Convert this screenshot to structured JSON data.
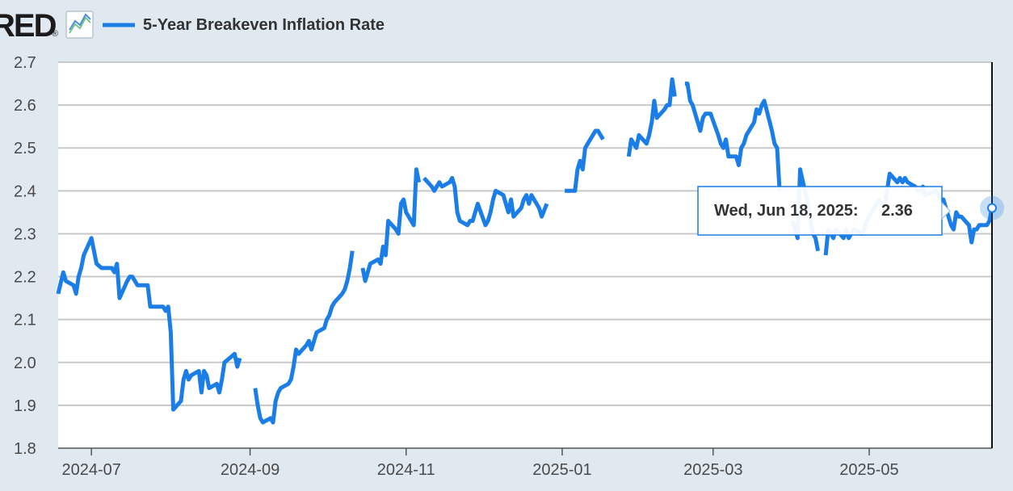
{
  "header": {
    "logo_text": "RED",
    "logo_mark": "®",
    "chart_icon": "line-chart-icon"
  },
  "tooltip": {
    "date": "Wed, Jun 18, 2025:",
    "value": "2.36"
  },
  "colors": {
    "series": "#1a7ee6",
    "background": "#e1e9f0",
    "plot_bg": "#ffffff",
    "grid": "#c8c8c8",
    "tooltip_border": "#1a7ee6"
  },
  "chart_data": {
    "type": "line",
    "title": "",
    "xlabel": "",
    "ylabel": "",
    "ylim": [
      1.8,
      2.7
    ],
    "yticks": [
      "1.8",
      "1.9",
      "2.0",
      "2.1",
      "2.2",
      "2.3",
      "2.4",
      "2.5",
      "2.6",
      "2.7"
    ],
    "xticks": [
      {
        "label": "2024-07",
        "date": "2024-07-01"
      },
      {
        "label": "2024-09",
        "date": "2024-09-01"
      },
      {
        "label": "2024-11",
        "date": "2024-11-01"
      },
      {
        "label": "2025-01",
        "date": "2025-01-01"
      },
      {
        "label": "2025-03",
        "date": "2025-03-01"
      },
      {
        "label": "2025-05",
        "date": "2025-05-01"
      }
    ],
    "xrange": [
      "2024-06-18",
      "2025-06-18"
    ],
    "grid": true,
    "legend_position": "top-left",
    "series": [
      {
        "name": "5-Year Breakeven Inflation Rate",
        "segments": [
          [
            [
              "2024-06-18",
              2.16
            ],
            [
              "2024-06-20",
              2.21
            ],
            [
              "2024-06-21",
              2.19
            ],
            [
              "2024-06-24",
              2.18
            ],
            [
              "2024-06-25",
              2.16
            ],
            [
              "2024-06-26",
              2.2
            ],
            [
              "2024-06-27",
              2.22
            ],
            [
              "2024-06-28",
              2.25
            ],
            [
              "2024-07-01",
              2.29
            ],
            [
              "2024-07-03",
              2.23
            ],
            [
              "2024-07-05",
              2.22
            ],
            [
              "2024-07-08",
              2.22
            ],
            [
              "2024-07-09",
              2.22
            ],
            [
              "2024-07-10",
              2.21
            ],
            [
              "2024-07-11",
              2.23
            ],
            [
              "2024-07-12",
              2.15
            ],
            [
              "2024-07-15",
              2.19
            ],
            [
              "2024-07-16",
              2.2
            ],
            [
              "2024-07-17",
              2.2
            ],
            [
              "2024-07-18",
              2.19
            ],
            [
              "2024-07-19",
              2.18
            ],
            [
              "2024-07-22",
              2.18
            ],
            [
              "2024-07-23",
              2.18
            ],
            [
              "2024-07-24",
              2.13
            ],
            [
              "2024-07-25",
              2.13
            ],
            [
              "2024-07-26",
              2.13
            ],
            [
              "2024-07-29",
              2.13
            ],
            [
              "2024-07-30",
              2.12
            ],
            [
              "2024-07-31",
              2.13
            ],
            [
              "2024-08-01",
              2.07
            ],
            [
              "2024-08-02",
              1.89
            ],
            [
              "2024-08-05",
              1.91
            ],
            [
              "2024-08-06",
              1.96
            ],
            [
              "2024-08-07",
              1.98
            ],
            [
              "2024-08-08",
              1.96
            ],
            [
              "2024-08-09",
              1.97
            ],
            [
              "2024-08-12",
              1.98
            ],
            [
              "2024-08-13",
              1.93
            ],
            [
              "2024-08-14",
              1.98
            ],
            [
              "2024-08-15",
              1.97
            ],
            [
              "2024-08-16",
              1.94
            ],
            [
              "2024-08-19",
              1.95
            ],
            [
              "2024-08-20",
              1.93
            ],
            [
              "2024-08-21",
              1.96
            ],
            [
              "2024-08-22",
              2.0
            ],
            [
              "2024-08-26",
              2.02
            ],
            [
              "2024-08-27",
              1.99
            ],
            [
              "2024-08-28",
              2.01
            ]
          ],
          [
            [
              "2024-09-03",
              1.94
            ],
            [
              "2024-09-04",
              1.9
            ],
            [
              "2024-09-05",
              1.87
            ],
            [
              "2024-09-06",
              1.86
            ],
            [
              "2024-09-09",
              1.87
            ],
            [
              "2024-09-10",
              1.86
            ],
            [
              "2024-09-11",
              1.91
            ],
            [
              "2024-09-12",
              1.93
            ],
            [
              "2024-09-13",
              1.94
            ],
            [
              "2024-09-16",
              1.95
            ],
            [
              "2024-09-17",
              1.96
            ],
            [
              "2024-09-18",
              1.99
            ],
            [
              "2024-09-19",
              2.03
            ],
            [
              "2024-09-20",
              2.02
            ],
            [
              "2024-09-23",
              2.04
            ],
            [
              "2024-09-24",
              2.05
            ],
            [
              "2024-09-25",
              2.03
            ],
            [
              "2024-09-26",
              2.05
            ],
            [
              "2024-09-27",
              2.07
            ],
            [
              "2024-09-30",
              2.08
            ],
            [
              "2024-10-01",
              2.1
            ],
            [
              "2024-10-02",
              2.11
            ],
            [
              "2024-10-03",
              2.13
            ],
            [
              "2024-10-04",
              2.14
            ],
            [
              "2024-10-07",
              2.16
            ],
            [
              "2024-10-08",
              2.17
            ],
            [
              "2024-10-09",
              2.19
            ],
            [
              "2024-10-10",
              2.22
            ],
            [
              "2024-10-11",
              2.26
            ]
          ],
          [
            [
              "2024-10-15",
              2.22
            ],
            [
              "2024-10-16",
              2.19
            ],
            [
              "2024-10-17",
              2.21
            ],
            [
              "2024-10-18",
              2.23
            ],
            [
              "2024-10-21",
              2.24
            ],
            [
              "2024-10-22",
              2.23
            ],
            [
              "2024-10-23",
              2.27
            ],
            [
              "2024-10-24",
              2.25
            ],
            [
              "2024-10-25",
              2.33
            ],
            [
              "2024-10-28",
              2.31
            ],
            [
              "2024-10-29",
              2.3
            ],
            [
              "2024-10-30",
              2.37
            ],
            [
              "2024-10-31",
              2.38
            ],
            [
              "2024-11-01",
              2.35
            ],
            [
              "2024-11-04",
              2.32
            ],
            [
              "2024-11-05",
              2.45
            ],
            [
              "2024-11-06",
              2.42
            ]
          ],
          [
            [
              "2024-11-08",
              2.43
            ],
            [
              "2024-11-11",
              2.41
            ],
            [
              "2024-11-12",
              2.4
            ],
            [
              "2024-11-13",
              2.41
            ],
            [
              "2024-11-14",
              2.42
            ],
            [
              "2024-11-15",
              2.41
            ],
            [
              "2024-11-18",
              2.42
            ],
            [
              "2024-11-19",
              2.43
            ],
            [
              "2024-11-20",
              2.41
            ],
            [
              "2024-11-21",
              2.35
            ],
            [
              "2024-11-22",
              2.33
            ],
            [
              "2024-11-25",
              2.32
            ],
            [
              "2024-11-26",
              2.33
            ],
            [
              "2024-11-27",
              2.33
            ],
            [
              "2024-11-29",
              2.37
            ],
            [
              "2024-12-02",
              2.32
            ],
            [
              "2024-12-03",
              2.33
            ],
            [
              "2024-12-04",
              2.35
            ],
            [
              "2024-12-05",
              2.38
            ],
            [
              "2024-12-06",
              2.4
            ],
            [
              "2024-12-09",
              2.39
            ],
            [
              "2024-12-10",
              2.37
            ],
            [
              "2024-12-11",
              2.35
            ],
            [
              "2024-12-12",
              2.38
            ],
            [
              "2024-12-13",
              2.34
            ],
            [
              "2024-12-16",
              2.36
            ],
            [
              "2024-12-17",
              2.38
            ],
            [
              "2024-12-18",
              2.39
            ],
            [
              "2024-12-19",
              2.37
            ],
            [
              "2024-12-20",
              2.39
            ],
            [
              "2024-12-23",
              2.36
            ],
            [
              "2024-12-24",
              2.34
            ],
            [
              "2024-12-26",
              2.37
            ]
          ],
          [
            [
              "2025-01-02",
              2.4
            ],
            [
              "2025-01-03",
              2.4
            ],
            [
              "2025-01-06",
              2.4
            ],
            [
              "2025-01-07",
              2.45
            ],
            [
              "2025-01-08",
              2.47
            ],
            [
              "2025-01-09",
              2.45
            ],
            [
              "2025-01-10",
              2.5
            ],
            [
              "2025-01-13",
              2.53
            ],
            [
              "2025-01-14",
              2.54
            ],
            [
              "2025-01-15",
              2.54
            ],
            [
              "2025-01-16",
              2.53
            ],
            [
              "2025-01-17",
              2.52
            ]
          ],
          [
            [
              "2025-01-27",
              2.48
            ],
            [
              "2025-01-28",
              2.52
            ],
            [
              "2025-01-29",
              2.51
            ],
            [
              "2025-01-30",
              2.5
            ],
            [
              "2025-01-31",
              2.53
            ],
            [
              "2025-02-03",
              2.51
            ],
            [
              "2025-02-04",
              2.53
            ],
            [
              "2025-02-05",
              2.56
            ],
            [
              "2025-02-06",
              2.61
            ],
            [
              "2025-02-07",
              2.57
            ],
            [
              "2025-02-10",
              2.59
            ],
            [
              "2025-02-11",
              2.6
            ],
            [
              "2025-02-12",
              2.6
            ],
            [
              "2025-02-13",
              2.66
            ],
            [
              "2025-02-14",
              2.62
            ]
          ],
          [
            [
              "2025-02-18",
              2.65
            ],
            [
              "2025-02-19",
              2.65
            ],
            [
              "2025-02-20",
              2.61
            ],
            [
              "2025-02-21",
              2.6
            ],
            [
              "2025-02-24",
              2.54
            ],
            [
              "2025-02-25",
              2.57
            ],
            [
              "2025-02-26",
              2.58
            ],
            [
              "2025-02-27",
              2.58
            ],
            [
              "2025-02-28",
              2.58
            ],
            [
              "2025-03-03",
              2.53
            ],
            [
              "2025-03-04",
              2.51
            ],
            [
              "2025-03-05",
              2.5
            ],
            [
              "2025-03-06",
              2.52
            ],
            [
              "2025-03-07",
              2.48
            ],
            [
              "2025-03-10",
              2.48
            ],
            [
              "2025-03-11",
              2.46
            ],
            [
              "2025-03-12",
              2.5
            ],
            [
              "2025-03-13",
              2.51
            ],
            [
              "2025-03-14",
              2.53
            ],
            [
              "2025-03-17",
              2.56
            ],
            [
              "2025-03-18",
              2.59
            ],
            [
              "2025-03-19",
              2.58
            ],
            [
              "2025-03-20",
              2.6
            ],
            [
              "2025-03-21",
              2.61
            ],
            [
              "2025-03-24",
              2.54
            ],
            [
              "2025-03-25",
              2.51
            ],
            [
              "2025-03-26",
              2.5
            ],
            [
              "2025-03-27",
              2.4
            ]
          ],
          [
            [
              "2025-04-01",
              2.33
            ],
            [
              "2025-04-02",
              2.31
            ],
            [
              "2025-04-03",
              2.29
            ],
            [
              "2025-04-04",
              2.45
            ],
            [
              "2025-04-07",
              2.37
            ],
            [
              "2025-04-08",
              2.33
            ],
            [
              "2025-04-09",
              2.3
            ],
            [
              "2025-04-10",
              2.29
            ],
            [
              "2025-04-11",
              2.26
            ]
          ],
          [
            [
              "2025-04-14",
              2.25
            ],
            [
              "2025-04-15",
              2.31
            ],
            [
              "2025-04-16",
              2.3
            ],
            [
              "2025-04-17",
              2.29
            ],
            [
              "2025-04-18",
              2.31
            ],
            [
              "2025-04-21",
              2.29
            ],
            [
              "2025-04-22",
              2.31
            ],
            [
              "2025-04-23",
              2.29
            ],
            [
              "2025-04-24",
              2.3
            ],
            [
              "2025-04-25",
              2.31
            ],
            [
              "2025-04-28",
              2.3
            ],
            [
              "2025-04-29",
              2.31
            ],
            [
              "2025-04-30",
              2.33
            ],
            [
              "2025-05-01",
              2.34
            ],
            [
              "2025-05-02",
              2.35
            ],
            [
              "2025-05-05",
              2.38
            ],
            [
              "2025-05-06",
              2.37
            ],
            [
              "2025-05-07",
              2.36
            ],
            [
              "2025-05-08",
              2.4
            ],
            [
              "2025-05-09",
              2.44
            ],
            [
              "2025-05-12",
              2.42
            ],
            [
              "2025-05-13",
              2.43
            ],
            [
              "2025-05-14",
              2.42
            ],
            [
              "2025-05-15",
              2.43
            ],
            [
              "2025-05-16",
              2.42
            ],
            [
              "2025-05-19",
              2.41
            ],
            [
              "2025-05-20",
              2.4
            ],
            [
              "2025-05-21",
              2.4
            ],
            [
              "2025-05-22",
              2.41
            ],
            [
              "2025-05-23",
              2.39
            ],
            [
              "2025-05-27",
              2.4
            ],
            [
              "2025-05-28",
              2.39
            ],
            [
              "2025-05-29",
              2.38
            ],
            [
              "2025-05-30",
              2.38
            ],
            [
              "2025-06-02",
              2.32
            ],
            [
              "2025-06-03",
              2.31
            ],
            [
              "2025-06-04",
              2.35
            ],
            [
              "2025-06-05",
              2.34
            ],
            [
              "2025-06-06",
              2.34
            ],
            [
              "2025-06-09",
              2.32
            ],
            [
              "2025-06-10",
              2.28
            ],
            [
              "2025-06-11",
              2.31
            ],
            [
              "2025-06-12",
              2.31
            ],
            [
              "2025-06-13",
              2.32
            ],
            [
              "2025-06-16",
              2.32
            ],
            [
              "2025-06-17",
              2.33
            ],
            [
              "2025-06-18",
              2.36
            ]
          ]
        ]
      }
    ]
  }
}
